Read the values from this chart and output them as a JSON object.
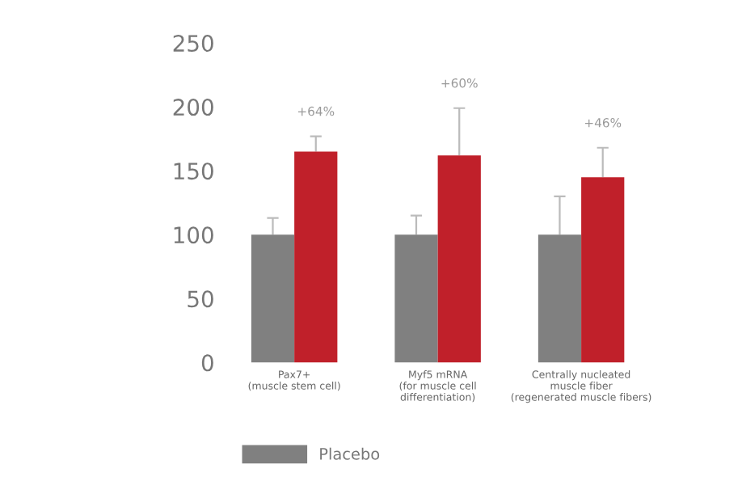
{
  "chart_data": {
    "type": "bar",
    "categories": [
      "Pax7+\n(muscle stem cell)",
      "Myf5 mRNA\n(for muscle cell\ndifferentiation)",
      "Centrally nucleated\nmuscle fiber\n(regenerated muscle fibers)"
    ],
    "series": [
      {
        "name": "Placebo",
        "color": "#808080",
        "values": [
          100,
          100,
          100
        ],
        "errors": [
          [
            100,
            113
          ],
          [
            100,
            115
          ],
          [
            100,
            130
          ]
        ]
      },
      {
        "color": "#c0202a",
        "values": [
          165,
          162,
          145
        ],
        "errors": [
          [
            165,
            177
          ],
          [
            162,
            199
          ],
          [
            145,
            168
          ]
        ]
      }
    ],
    "ylim": [
      0,
      250
    ],
    "yticks": [
      0,
      50,
      100,
      150,
      200,
      250
    ],
    "grid": false,
    "legend": "bottom",
    "annotations": [
      "+64%",
      "+60%",
      "+46%"
    ]
  }
}
